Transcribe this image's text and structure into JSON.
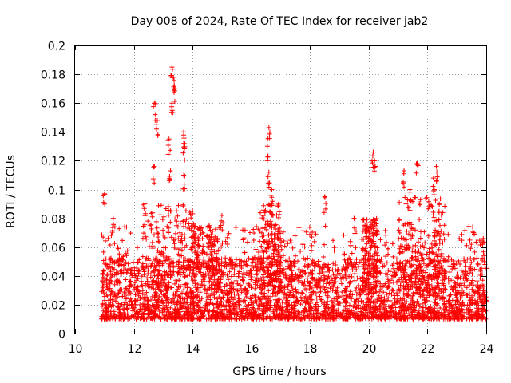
{
  "chart_data": {
    "type": "scatter",
    "title": "Day 008 of 2024, Rate Of TEC Index for receiver jab2",
    "xlabel": "GPS time / hours",
    "ylabel": "ROTI / TECUs",
    "xlim": [
      10,
      24
    ],
    "ylim": [
      0,
      0.2
    ],
    "xticks": [
      10,
      12,
      14,
      16,
      18,
      20,
      22,
      24
    ],
    "yticks": [
      0,
      0.02,
      0.04,
      0.06,
      0.08,
      0.1,
      0.12,
      0.14,
      0.16,
      0.18,
      0.2
    ],
    "xtick_labels": [
      "10",
      "12",
      "14",
      "16",
      "18",
      "20",
      "22",
      "24"
    ],
    "ytick_labels": [
      "0",
      "0.02",
      "0.04",
      "0.06",
      "0.08",
      "0.1",
      "0.12",
      "0.14",
      "0.16",
      "0.18",
      "0.2"
    ],
    "grid": true,
    "marker": "+",
    "color": "#ff0000",
    "series": [
      {
        "name": "ROTI",
        "note": "data points occupy GPS time 10.9–24 h; bulk values 0.01–0.06 TECU/s",
        "x_range": [
          10.9,
          24.0
        ],
        "typical_range": [
          0.01,
          0.06
        ],
        "peaks": [
          {
            "x": 11.0,
            "y": 0.097
          },
          {
            "x": 12.7,
            "y": 0.16
          },
          {
            "x": 12.8,
            "y": 0.148
          },
          {
            "x": 12.7,
            "y": 0.116
          },
          {
            "x": 13.3,
            "y": 0.185
          },
          {
            "x": 13.35,
            "y": 0.178
          },
          {
            "x": 13.4,
            "y": 0.17
          },
          {
            "x": 13.3,
            "y": 0.16
          },
          {
            "x": 13.2,
            "y": 0.135
          },
          {
            "x": 13.25,
            "y": 0.113
          },
          {
            "x": 13.7,
            "y": 0.14
          },
          {
            "x": 13.7,
            "y": 0.132
          },
          {
            "x": 13.7,
            "y": 0.11
          },
          {
            "x": 14.0,
            "y": 0.085
          },
          {
            "x": 16.6,
            "y": 0.143
          },
          {
            "x": 16.55,
            "y": 0.13
          },
          {
            "x": 16.6,
            "y": 0.112
          },
          {
            "x": 16.7,
            "y": 0.1
          },
          {
            "x": 18.5,
            "y": 0.095
          },
          {
            "x": 20.15,
            "y": 0.126
          },
          {
            "x": 20.2,
            "y": 0.12
          },
          {
            "x": 21.2,
            "y": 0.113
          },
          {
            "x": 21.4,
            "y": 0.1
          },
          {
            "x": 21.65,
            "y": 0.118
          },
          {
            "x": 22.3,
            "y": 0.116
          },
          {
            "x": 22.2,
            "y": 0.108
          },
          {
            "x": 22.4,
            "y": 0.09
          },
          {
            "x": 23.9,
            "y": 0.066
          },
          {
            "x": 11.3,
            "y": 0.08
          },
          {
            "x": 15.0,
            "y": 0.082
          },
          {
            "x": 19.5,
            "y": 0.08
          }
        ]
      }
    ]
  }
}
